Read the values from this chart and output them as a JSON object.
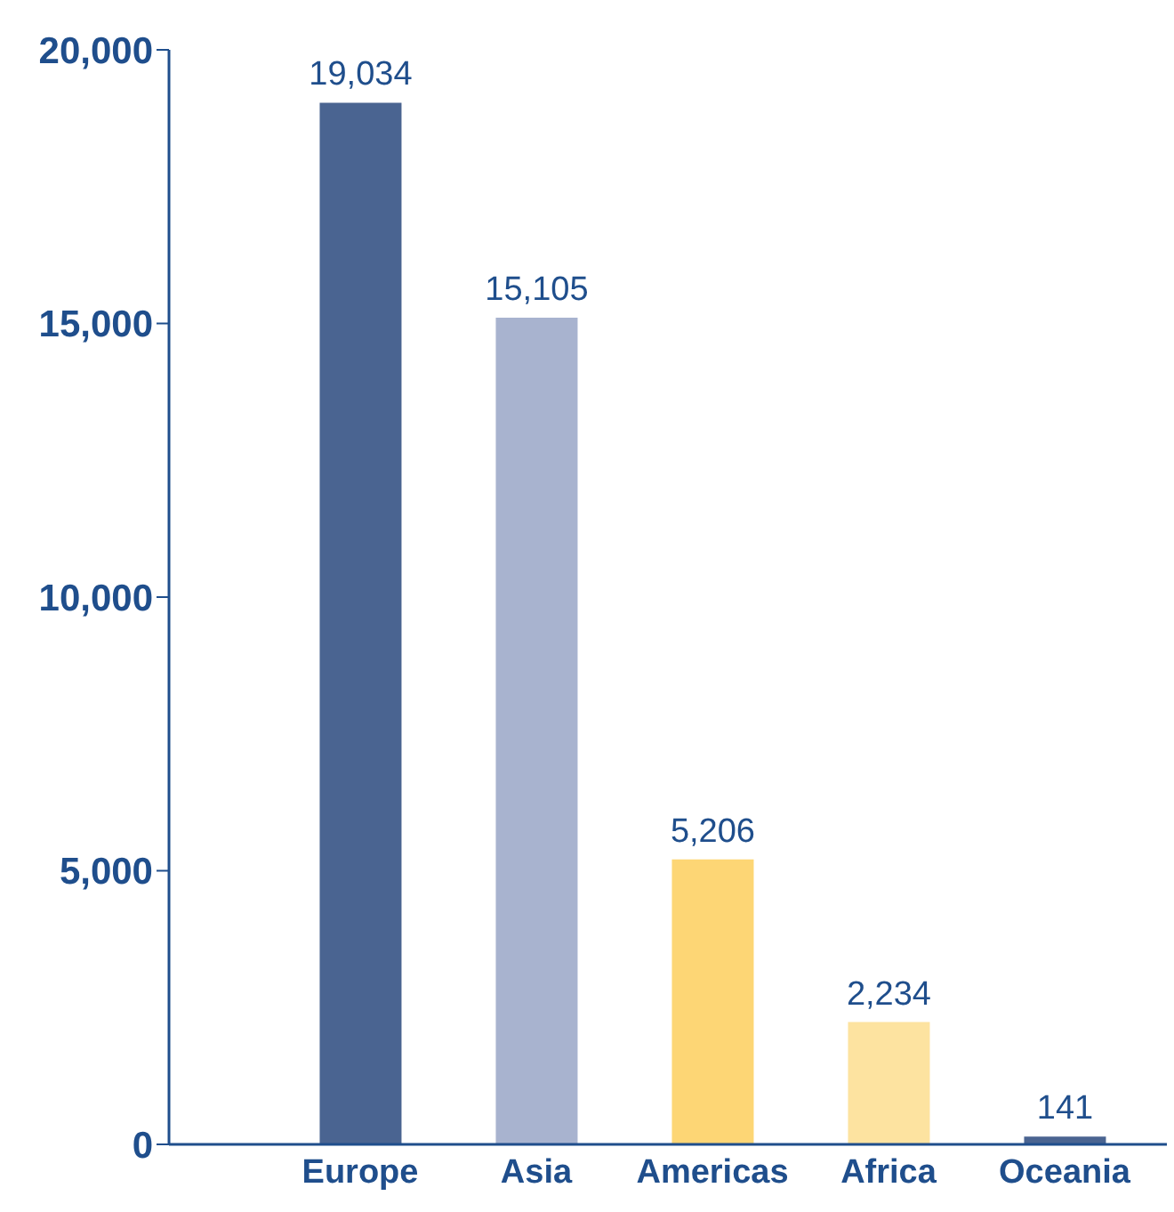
{
  "chart_data": {
    "type": "bar",
    "categories": [
      "Europe",
      "Asia",
      "Americas",
      "Africa",
      "Oceania"
    ],
    "values": [
      19034,
      15105,
      5206,
      2234,
      141
    ],
    "colors": [
      "#4a6491",
      "#a8b3cf",
      "#fdd675",
      "#fde3a0",
      "#4a6491"
    ],
    "ylim": [
      0,
      20000
    ],
    "yticks": [
      {
        "value": 0,
        "label": "0"
      },
      {
        "value": 5000,
        "label": "5,000"
      },
      {
        "value": 10000,
        "label": "10,000"
      },
      {
        "value": 15000,
        "label": "15,000"
      },
      {
        "value": 20000,
        "label": "20,000"
      }
    ],
    "value_labels": [
      "19,034",
      "15,105",
      "5,206",
      "2,234",
      "141"
    ],
    "grid": false,
    "legend": false
  }
}
